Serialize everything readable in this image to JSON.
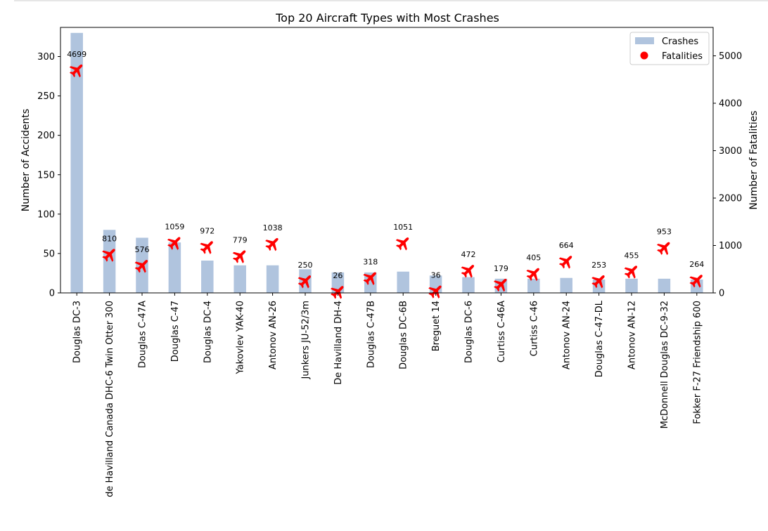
{
  "chart_data": {
    "type": "bar",
    "title": "Top 20 Aircraft Types with Most Crashes",
    "ylabel": "Number of Accidents",
    "y2label": "Number of Fatalities",
    "ylim": [
      0,
      337
    ],
    "y2lim": [
      0,
      5600
    ],
    "yticks": [
      0,
      50,
      100,
      150,
      200,
      250,
      300
    ],
    "y2ticks": [
      0,
      1000,
      2000,
      3000,
      4000,
      5000
    ],
    "categories": [
      "Douglas DC-3",
      "de Havilland Canada DHC-6 Twin Otter 300",
      "Douglas C-47A",
      "Douglas C-47",
      "Douglas DC-4",
      "Yakovlev YAK-40",
      "Antonov AN-26",
      "Junkers JU-52/3m",
      "De Havilland DH-4",
      "Douglas C-47B",
      "Douglas DC-6B",
      "Breguet 14",
      "Douglas DC-6",
      "Curtiss C-46A",
      "Curtiss C-46",
      "Antonov AN-24",
      "Douglas C-47-DL",
      "Antonov AN-12",
      "McDonnell Douglas DC-9-32",
      "Fokker F-27 Friendship 600"
    ],
    "series": [
      {
        "name": "Crashes",
        "type": "bar",
        "color": "#b0c4de",
        "values": [
          330,
          80,
          70,
          64,
          41,
          35,
          35,
          30,
          26,
          26,
          27,
          22,
          20,
          18,
          18,
          19,
          17,
          18,
          18,
          17
        ]
      },
      {
        "name": "Fatalities",
        "type": "marker",
        "marker": "airplane",
        "color": "#ff0000",
        "values": [
          4699,
          810,
          576,
          1059,
          972,
          779,
          1038,
          250,
          26,
          318,
          1051,
          36,
          472,
          179,
          405,
          664,
          253,
          455,
          953,
          264
        ],
        "labels": [
          "4699",
          "810",
          "576",
          "1059",
          "972",
          "779",
          "1038",
          "250",
          "26",
          "318",
          "1051",
          "36",
          "472",
          "179",
          "405",
          "664",
          "253",
          "455",
          "953",
          "264"
        ]
      }
    ],
    "legend": {
      "position": "top-right",
      "entries": [
        "Crashes",
        "Fatalities"
      ]
    },
    "grid": false
  }
}
